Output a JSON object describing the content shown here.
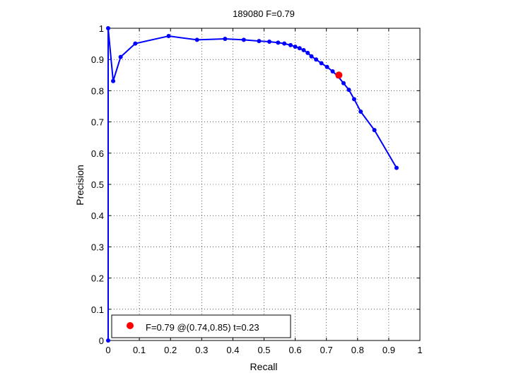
{
  "chart_data": {
    "type": "line",
    "title": "189080 F=0.79",
    "xlabel": "Recall",
    "ylabel": "Precision",
    "xlim": [
      0,
      1
    ],
    "ylim": [
      0,
      1
    ],
    "xticks": [
      0,
      0.1,
      0.2,
      0.3,
      0.4,
      0.5,
      0.6,
      0.7,
      0.8,
      0.9,
      1
    ],
    "yticks": [
      0,
      0.1,
      0.2,
      0.3,
      0.4,
      0.5,
      0.6,
      0.7,
      0.8,
      0.9,
      1
    ],
    "xtick_labels": [
      "0",
      "0.1",
      "0.2",
      "0.3",
      "0.4",
      "0.5",
      "0.6",
      "0.7",
      "0.8",
      "0.9",
      "1"
    ],
    "ytick_labels": [
      "0",
      "0.1",
      "0.2",
      "0.3",
      "0.4",
      "0.5",
      "0.6",
      "0.7",
      "0.8",
      "0.9",
      "1"
    ],
    "grid": true,
    "legend_position": "bottom-left",
    "series": [
      {
        "color": "#0000ff",
        "x": [
          0,
          0,
          0.016,
          0.04,
          0.087,
          0.194,
          0.285,
          0.375,
          0.435,
          0.484,
          0.517,
          0.545,
          0.565,
          0.585,
          0.6,
          0.614,
          0.627,
          0.64,
          0.652,
          0.667,
          0.684,
          0.702,
          0.72,
          0.737,
          0.755,
          0.772,
          0.789,
          0.81,
          0.854,
          0.925
        ],
        "y": [
          0,
          1,
          0.831,
          0.908,
          0.951,
          0.975,
          0.963,
          0.966,
          0.963,
          0.959,
          0.957,
          0.954,
          0.951,
          0.946,
          0.941,
          0.936,
          0.93,
          0.921,
          0.91,
          0.9,
          0.888,
          0.876,
          0.862,
          0.846,
          0.824,
          0.803,
          0.773,
          0.733,
          0.674,
          0.553
        ]
      }
    ],
    "best_point": {
      "x": 0.74,
      "y": 0.85,
      "color": "#ff0000"
    },
    "legend_text": "F=0.79 @(0.74,0.85) t=0.23"
  }
}
